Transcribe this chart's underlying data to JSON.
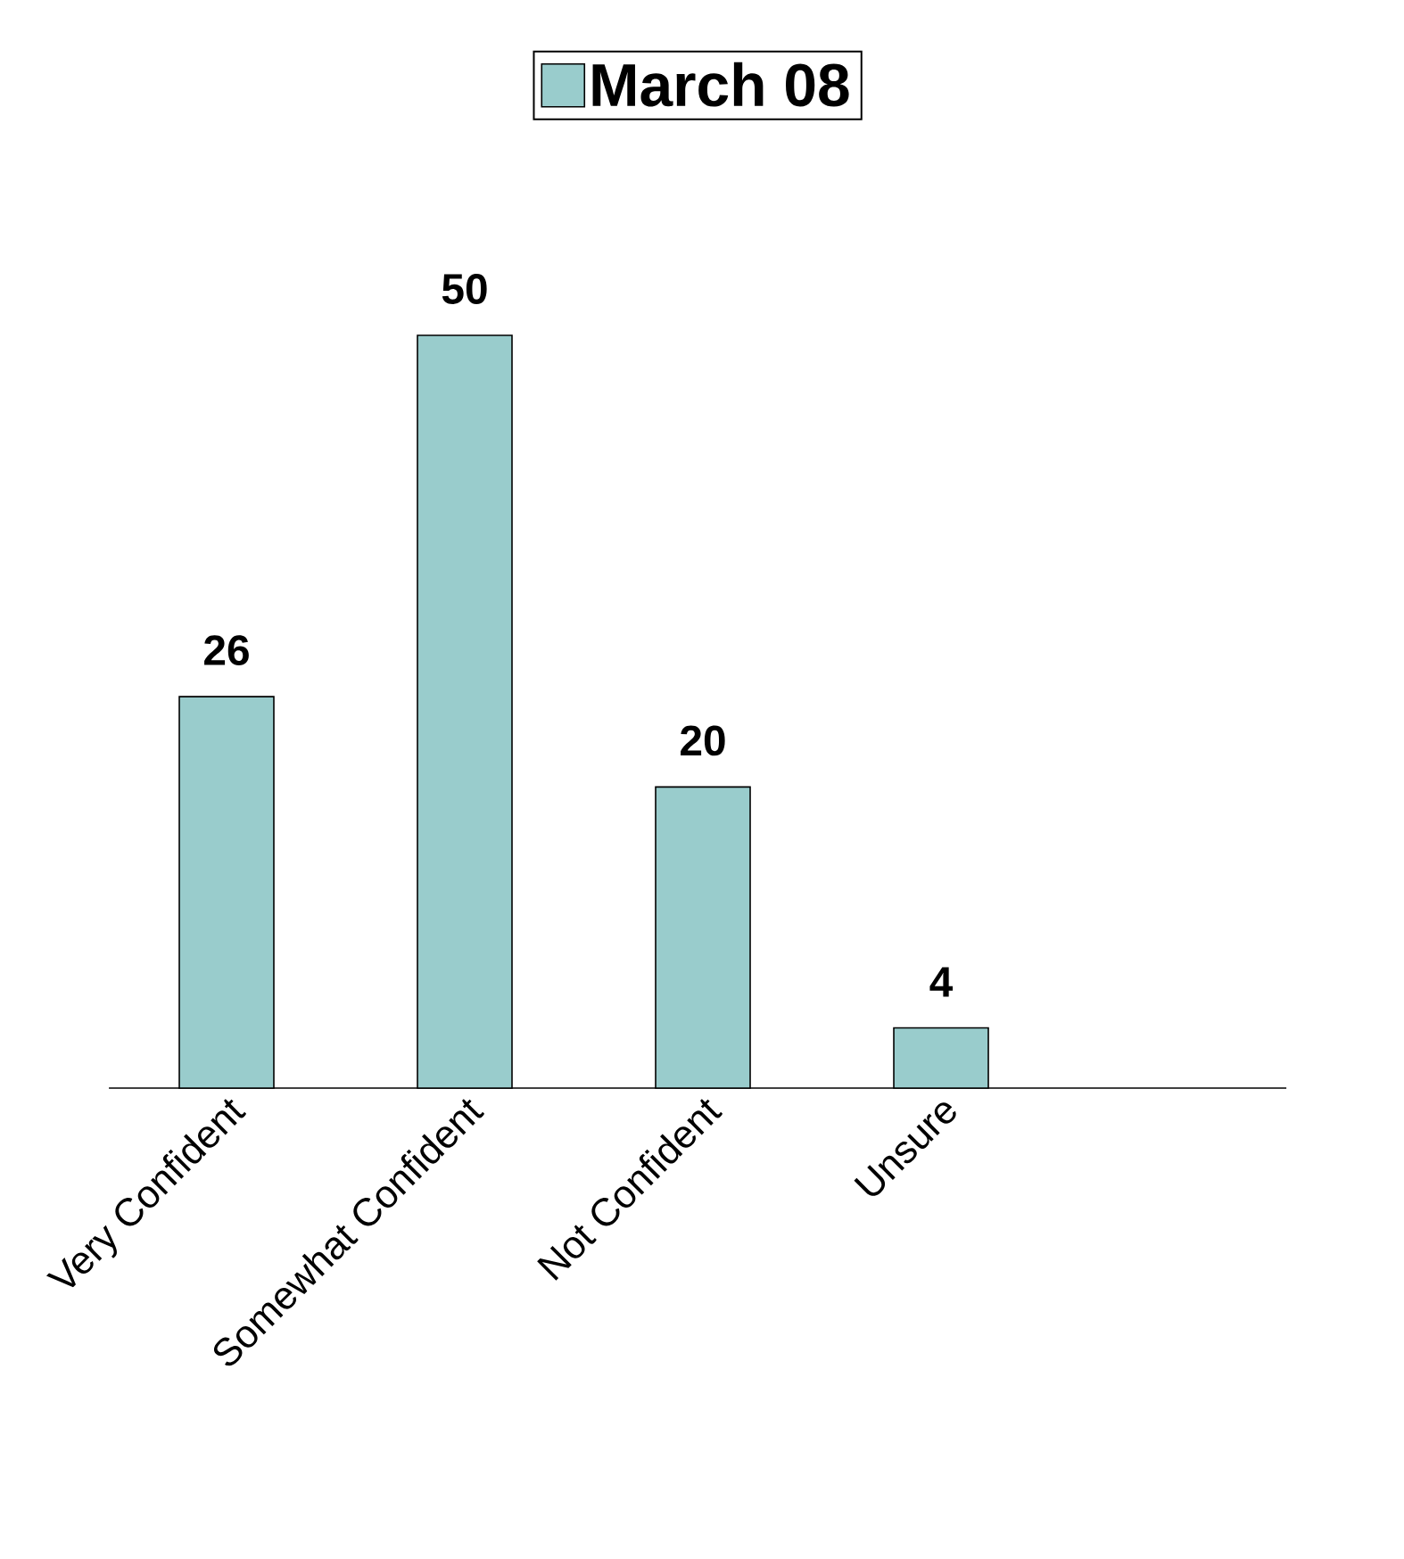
{
  "chart_data": {
    "type": "bar",
    "categories": [
      "Very Confident",
      "Somewhat Confident",
      "Not Confident",
      "Unsure"
    ],
    "series": [
      {
        "name": "March 08",
        "color": "#99cccc",
        "values": [
          26,
          50,
          20,
          4
        ]
      }
    ],
    "data_labels": true,
    "legend": "top"
  }
}
